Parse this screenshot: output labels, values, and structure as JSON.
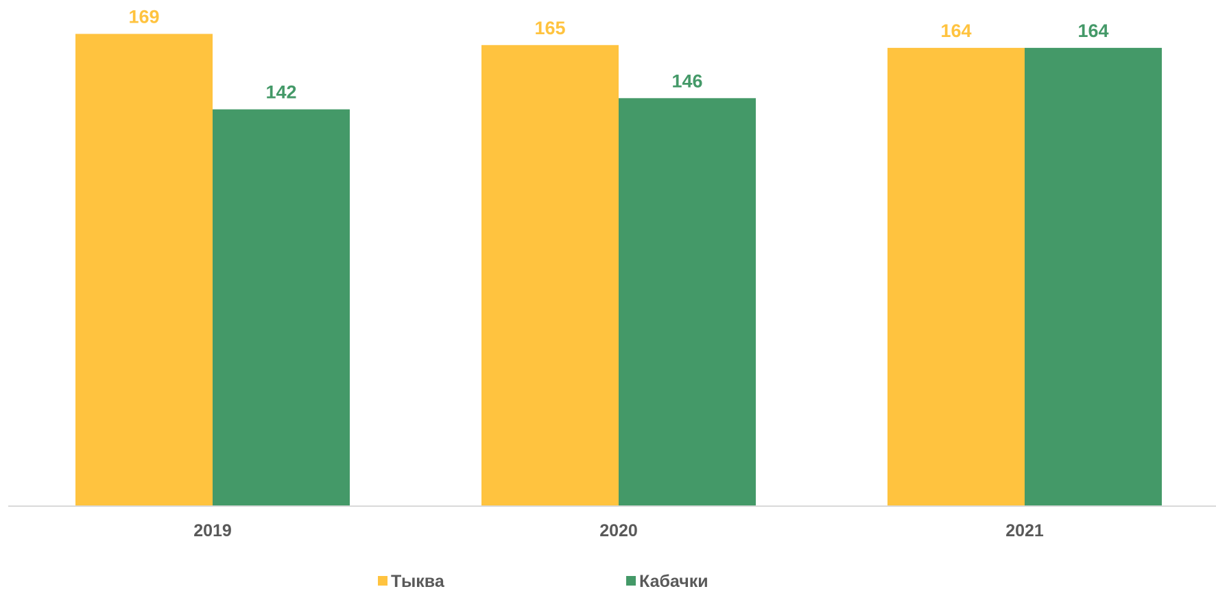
{
  "chart_data": {
    "type": "bar",
    "categories": [
      "2019",
      "2020",
      "2021"
    ],
    "series": [
      {
        "name": "Тыква",
        "values": [
          169,
          165,
          164
        ],
        "color": "#FFC33F"
      },
      {
        "name": "Кабачки",
        "values": [
          142,
          146,
          164
        ],
        "color": "#449968"
      }
    ],
    "title": "",
    "xlabel": "",
    "ylabel": "",
    "ylim": [
      0,
      178
    ],
    "grid": false,
    "legend": "bottom",
    "data_labels": true,
    "axis_line_color": "#D9D9D9"
  }
}
